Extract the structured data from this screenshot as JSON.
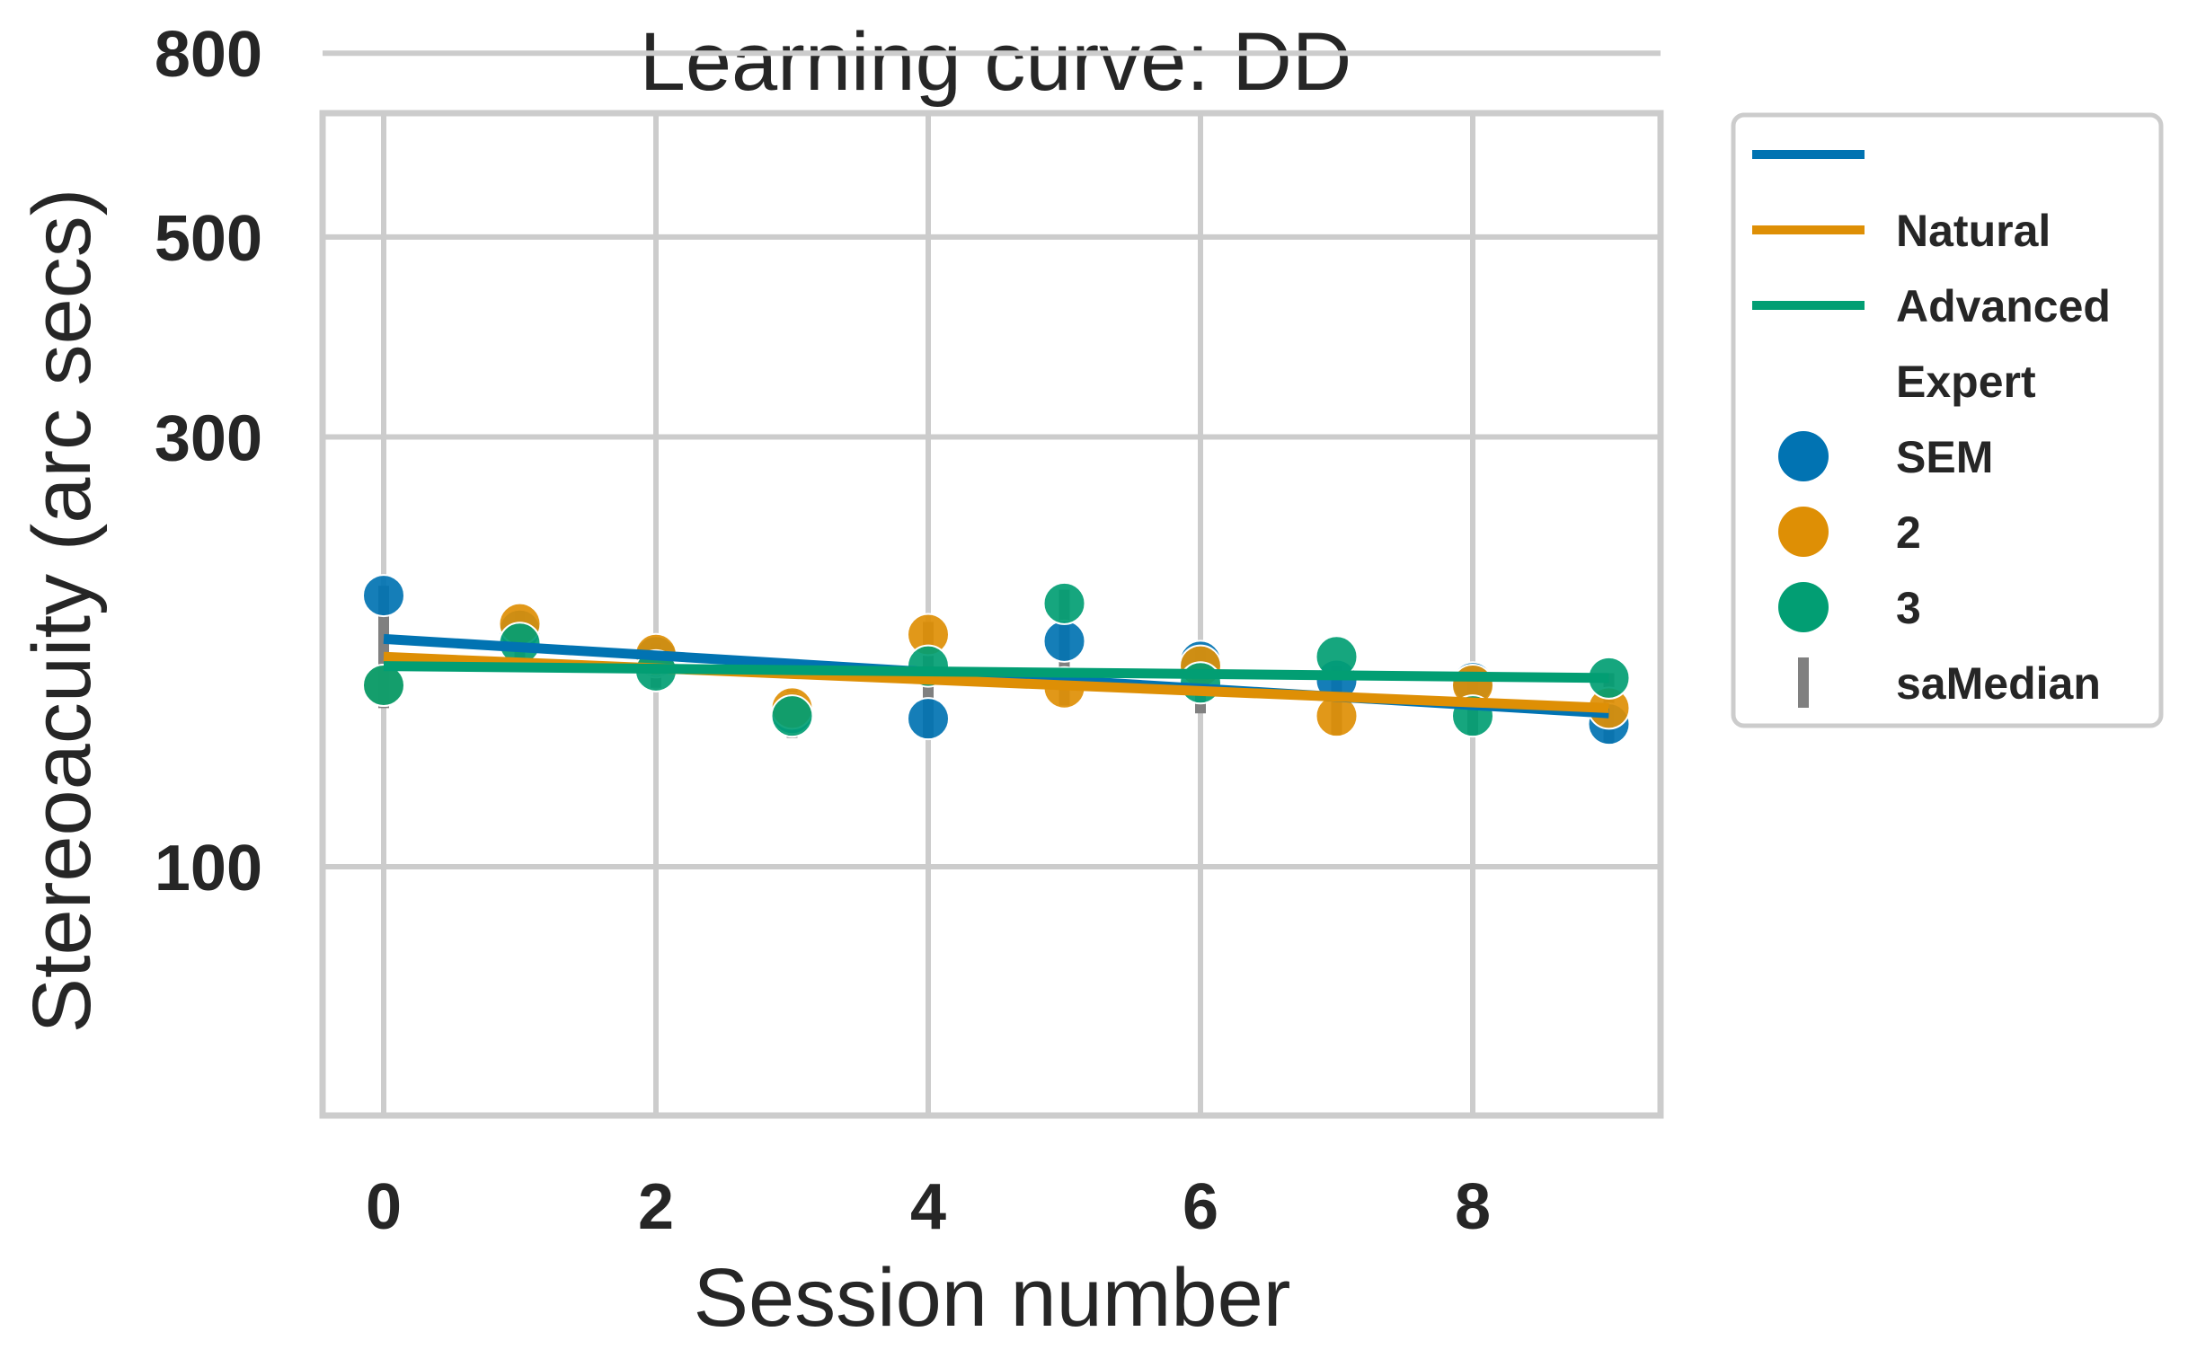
{
  "chart_data": {
    "type": "scatter",
    "title": "Learning curve: DD",
    "xlabel": "Session number",
    "ylabel": "Stereoacuity (arc secs)",
    "y_scale": "log",
    "xlim": [
      -0.45,
      9.45
    ],
    "ylim": [
      70,
      830
    ],
    "x_ticks": [
      0,
      2,
      4,
      6,
      8
    ],
    "y_ticks": [
      100,
      300,
      500,
      800
    ],
    "grid": true,
    "legend_placement": "outside-right",
    "series": [
      {
        "legend_label": "SEM",
        "color": "#0173b2",
        "points": [
          {
            "x": 0,
            "y": 200
          },
          {
            "x": 1,
            "y": 183
          },
          {
            "x": 2,
            "y": 171
          },
          {
            "x": 3,
            "y": 148
          },
          {
            "x": 4,
            "y": 146
          },
          {
            "x": 5,
            "y": 178
          },
          {
            "x": 6,
            "y": 169
          },
          {
            "x": 7,
            "y": 161
          },
          {
            "x": 8,
            "y": 160
          },
          {
            "x": 9,
            "y": 144
          }
        ],
        "fit": {
          "y_start": 179,
          "y_end": 148
        }
      },
      {
        "legend_label": "2",
        "color": "#de8f05",
        "points": [
          {
            "x": 0,
            "y": 159
          },
          {
            "x": 1,
            "y": 186
          },
          {
            "x": 2,
            "y": 172
          },
          {
            "x": 3,
            "y": 150
          },
          {
            "x": 4,
            "y": 181
          },
          {
            "x": 5,
            "y": 158
          },
          {
            "x": 6,
            "y": 167
          },
          {
            "x": 7,
            "y": 147
          },
          {
            "x": 8,
            "y": 159
          },
          {
            "x": 9,
            "y": 150
          }
        ],
        "fit": {
          "y_start": 171,
          "y_end": 150
        }
      },
      {
        "legend_label": "3",
        "color": "#029e73",
        "points": [
          {
            "x": 0,
            "y": 159
          },
          {
            "x": 1,
            "y": 177
          },
          {
            "x": 2,
            "y": 165
          },
          {
            "x": 3,
            "y": 147
          },
          {
            "x": 4,
            "y": 167
          },
          {
            "x": 5,
            "y": 196
          },
          {
            "x": 6,
            "y": 160
          },
          {
            "x": 7,
            "y": 171
          },
          {
            "x": 8,
            "y": 147
          },
          {
            "x": 9,
            "y": 162
          }
        ],
        "fit": {
          "y_start": 167,
          "y_end": 162
        }
      }
    ],
    "sem_bars": {
      "legend_label": "saMedian",
      "color": "#808080",
      "bars": [
        {
          "x": 0,
          "low": 150,
          "high": 205
        },
        {
          "x": 1,
          "low": 166,
          "high": 193
        },
        {
          "x": 2,
          "low": 158,
          "high": 177
        },
        {
          "x": 3,
          "low": 139,
          "high": 157
        },
        {
          "x": 4,
          "low": 139,
          "high": 187
        },
        {
          "x": 5,
          "low": 151,
          "high": 203
        },
        {
          "x": 6,
          "low": 148,
          "high": 174
        },
        {
          "x": 7,
          "low": 140,
          "high": 167
        },
        {
          "x": 8,
          "low": 140,
          "high": 166
        },
        {
          "x": 9,
          "low": 137,
          "high": 164
        }
      ]
    },
    "legend": {
      "line_entries": [
        {
          "label": "",
          "color": "#0173b2"
        },
        {
          "label": "Natural",
          "color": "#de8f05"
        },
        {
          "label": "Advanced",
          "color": "#029e73"
        }
      ],
      "heading": "Expert",
      "marker_entries": [
        {
          "label": "SEM",
          "color": "#0173b2"
        },
        {
          "label": "2",
          "color": "#de8f05"
        },
        {
          "label": "3",
          "color": "#029e73"
        }
      ],
      "bar_entry": {
        "label": "saMedian",
        "color": "#808080"
      }
    }
  }
}
